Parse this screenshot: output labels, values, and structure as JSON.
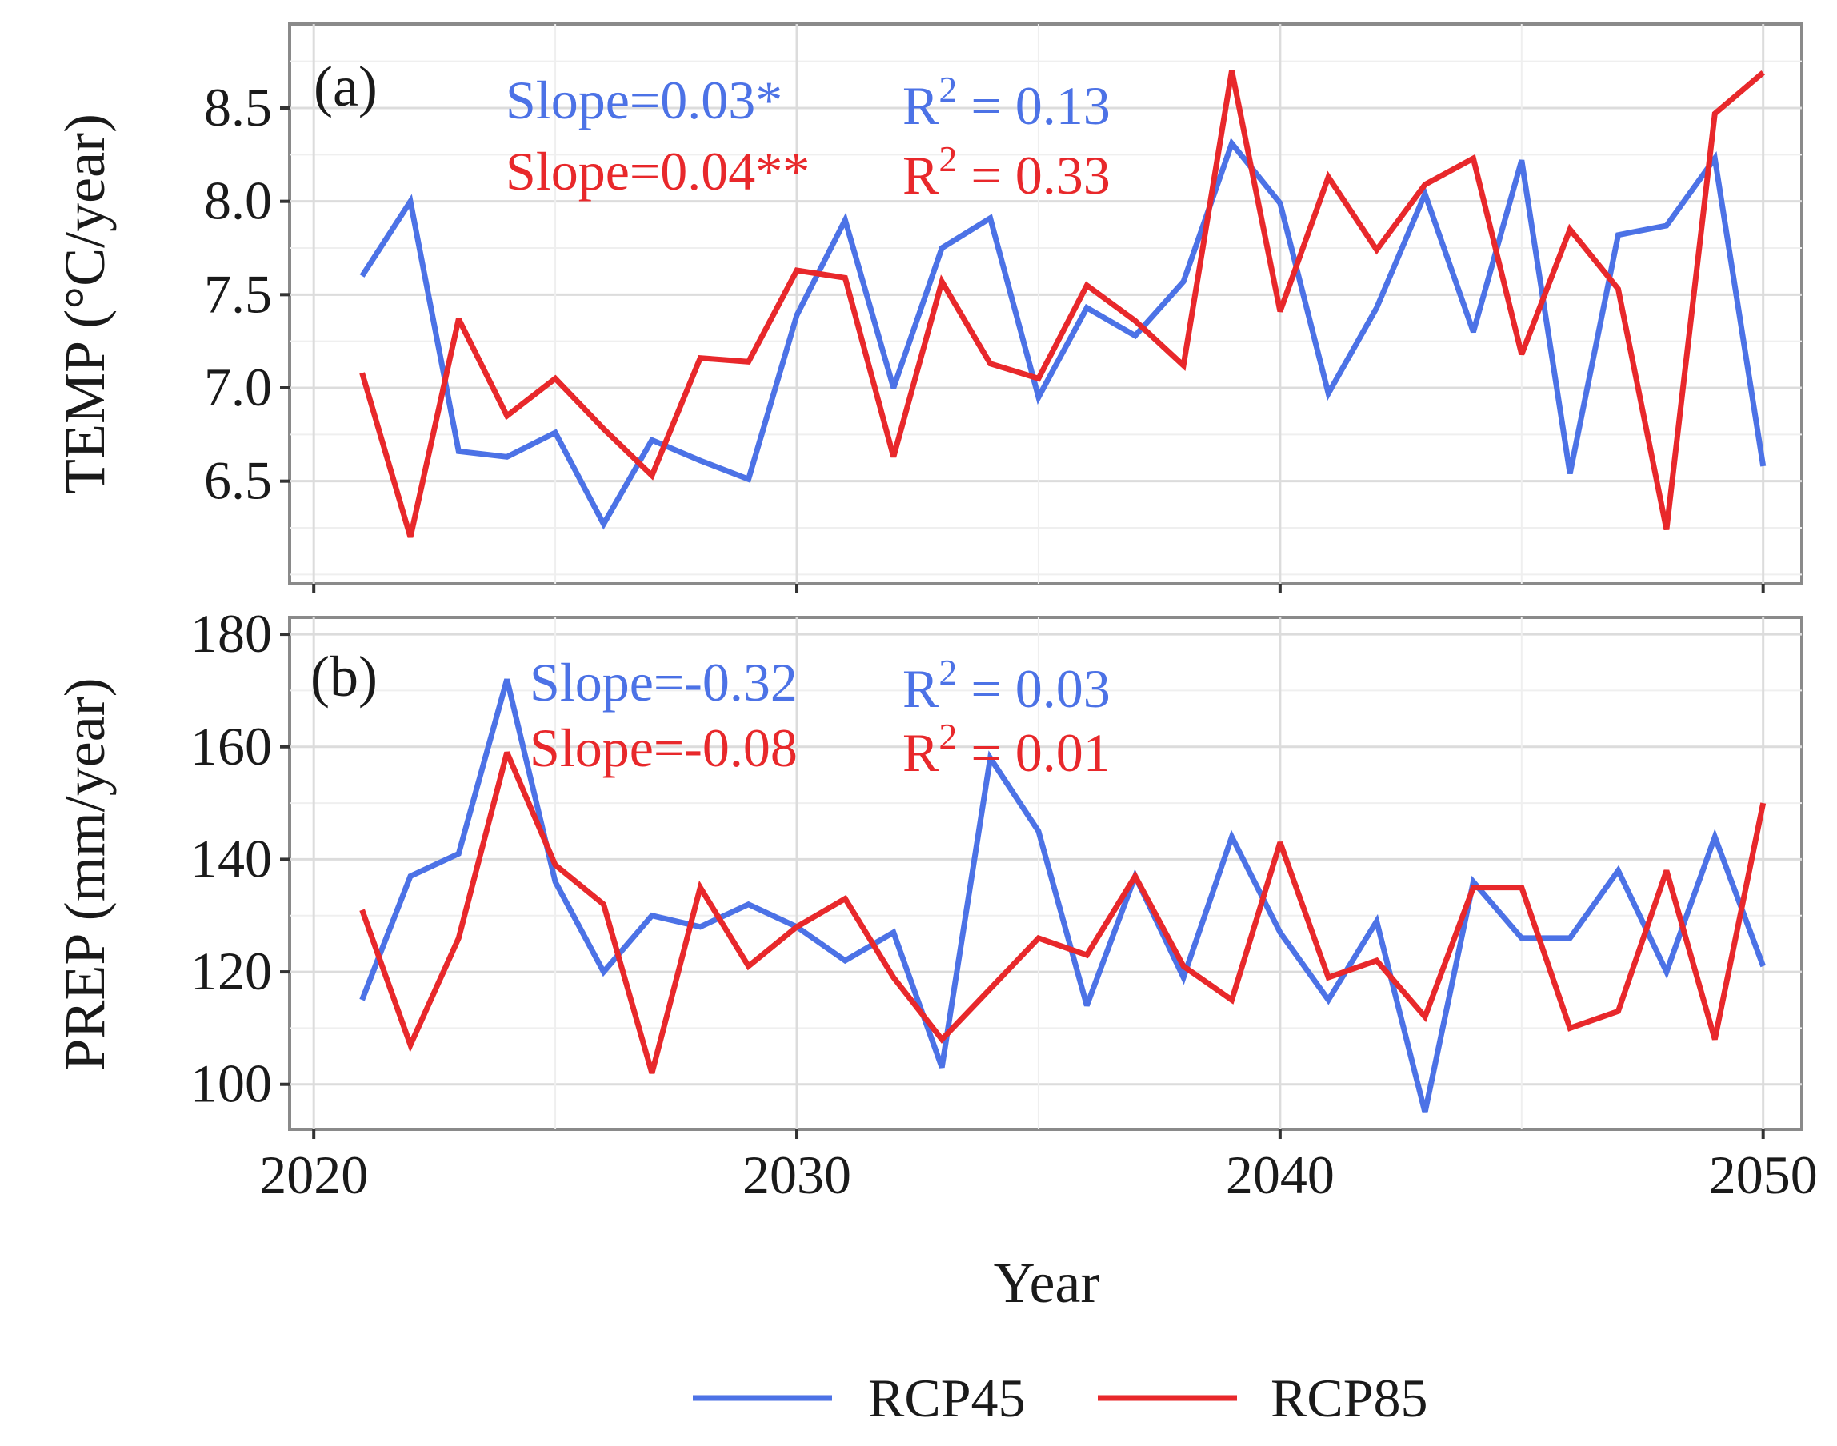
{
  "chart_data": [
    {
      "type": "line",
      "panel_label": "(a)",
      "ylabel": "TEMP (°C/year)",
      "ylim": [
        5.95,
        8.95
      ],
      "yticks": [
        "6.5",
        "7.0",
        "7.5",
        "8.0",
        "8.5"
      ],
      "x": [
        2021,
        2022,
        2023,
        2024,
        2025,
        2026,
        2027,
        2028,
        2029,
        2030,
        2031,
        2032,
        2033,
        2034,
        2035,
        2036,
        2037,
        2038,
        2039,
        2040,
        2041,
        2042,
        2043,
        2044,
        2045,
        2046,
        2047,
        2048,
        2049,
        2050
      ],
      "series": [
        {
          "name": "RCP45",
          "color": "#4C72E6",
          "values": [
            7.6,
            8.0,
            6.66,
            6.63,
            6.76,
            6.27,
            6.72,
            6.61,
            6.51,
            7.39,
            7.9,
            7.0,
            7.75,
            7.91,
            6.95,
            7.43,
            7.28,
            7.57,
            8.31,
            7.99,
            6.97,
            7.43,
            8.04,
            7.3,
            8.22,
            6.54,
            7.82,
            7.87,
            8.23,
            6.58
          ]
        },
        {
          "name": "RCP85",
          "color": "#E8282B",
          "values": [
            7.08,
            6.2,
            7.37,
            6.85,
            7.05,
            6.78,
            6.53,
            7.16,
            7.14,
            7.63,
            7.59,
            6.63,
            7.57,
            7.13,
            7.05,
            7.55,
            7.36,
            7.12,
            8.7,
            7.41,
            8.13,
            7.74,
            8.09,
            8.23,
            7.18,
            7.85,
            7.53,
            6.24,
            8.47,
            8.69
          ]
        }
      ],
      "annotations": [
        {
          "text": "Slope=0.03*",
          "series": "RCP45"
        },
        {
          "text": "R",
          "sup": "2",
          "rest": " = 0.13",
          "series": "RCP45"
        },
        {
          "text": "Slope=0.04**",
          "series": "RCP85"
        },
        {
          "text": "R",
          "sup": "2",
          "rest": " = 0.33",
          "series": "RCP85"
        }
      ]
    },
    {
      "type": "line",
      "panel_label": "(b)",
      "ylabel": "PREP (mm/year)",
      "ylim": [
        92,
        183
      ],
      "yticks": [
        "100",
        "120",
        "140",
        "160",
        "180"
      ],
      "x": [
        2021,
        2022,
        2023,
        2024,
        2025,
        2026,
        2027,
        2028,
        2029,
        2030,
        2031,
        2032,
        2033,
        2034,
        2035,
        2036,
        2037,
        2038,
        2039,
        2040,
        2041,
        2042,
        2043,
        2044,
        2045,
        2046,
        2047,
        2048,
        2049,
        2050
      ],
      "series": [
        {
          "name": "RCP45",
          "color": "#4C72E6",
          "values": [
            115,
            137,
            141,
            172,
            136,
            120,
            130,
            128,
            132,
            128,
            122,
            127,
            103,
            158,
            145,
            114,
            137,
            119,
            144,
            127,
            115,
            129,
            95,
            136,
            126,
            126,
            138,
            120,
            144,
            121
          ]
        },
        {
          "name": "RCP85",
          "color": "#E8282B",
          "values": [
            131,
            107,
            126,
            159,
            139,
            132,
            102,
            135,
            121,
            128,
            133,
            119,
            108,
            117,
            126,
            123,
            137,
            121,
            115,
            143,
            119,
            122,
            112,
            135,
            135,
            110,
            113,
            138,
            108,
            150
          ]
        }
      ],
      "annotations": [
        {
          "text": "Slope=-0.32",
          "series": "RCP45"
        },
        {
          "text": "R",
          "sup": "2",
          "rest": " = 0.03",
          "series": "RCP45"
        },
        {
          "text": "Slope=-0.08",
          "series": "RCP85"
        },
        {
          "text": "R",
          "sup": "2",
          "rest": " = 0.01",
          "series": "RCP85"
        }
      ]
    }
  ],
  "shared": {
    "xlabel": "Year",
    "xlim": [
      2019.5,
      2050.8
    ],
    "xticks": [
      "2020",
      "2030",
      "2040",
      "2050"
    ],
    "legend_position": "bottom",
    "legend": [
      {
        "name": "RCP45",
        "color": "#4C72E6"
      },
      {
        "name": "RCP85",
        "color": "#E8282B"
      }
    ]
  }
}
